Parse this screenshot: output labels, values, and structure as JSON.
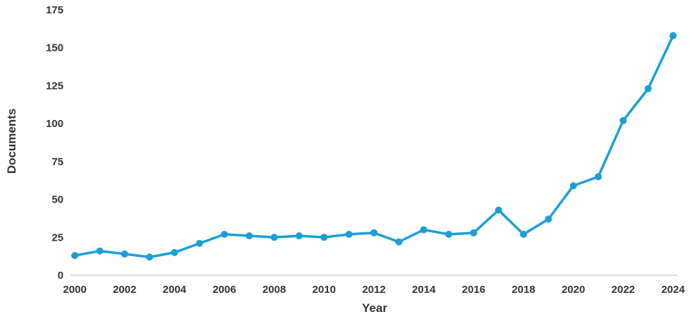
{
  "chart_data": {
    "type": "line",
    "title": "",
    "xlabel": "Year",
    "ylabel": "Documents",
    "x": [
      2000,
      2001,
      2002,
      2003,
      2004,
      2005,
      2006,
      2007,
      2008,
      2009,
      2010,
      2011,
      2012,
      2013,
      2014,
      2015,
      2016,
      2017,
      2018,
      2019,
      2020,
      2021,
      2022,
      2023,
      2024
    ],
    "series": [
      {
        "name": "Documents",
        "values": [
          13,
          16,
          14,
          12,
          15,
          21,
          27,
          26,
          25,
          26,
          25,
          27,
          28,
          22,
          30,
          27,
          28,
          43,
          27,
          37,
          59,
          65,
          102,
          123,
          158
        ]
      }
    ],
    "ylim": [
      0,
      175
    ],
    "yticks": [
      0,
      25,
      50,
      75,
      100,
      125,
      150,
      175
    ],
    "xtick_step": 2,
    "grid": false,
    "legend_position": "none",
    "line_color": "#1b9fd6",
    "marker_color": "#1b9fd6",
    "axis_line_color": "#cfcfcf",
    "text_color": "#333333",
    "background_color": "#ffffff"
  }
}
